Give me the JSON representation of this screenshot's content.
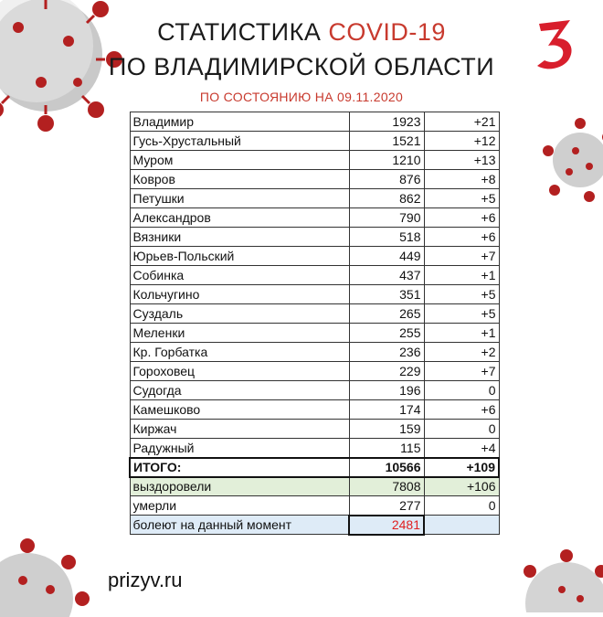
{
  "header": {
    "title_line1_black": "СТАТИСТИКА",
    "title_line1_red": "COVID-19",
    "title_line2": "ПО ВЛАДИМИРСКОЙ ОБЛАСТИ",
    "subtitle": "ПО СОСТОЯНИЮ НА 09.11.2020"
  },
  "table": {
    "rows": [
      {
        "name": "Владимир",
        "total": "1923",
        "delta": "+21"
      },
      {
        "name": "Гусь-Хрустальный",
        "total": "1521",
        "delta": "+12"
      },
      {
        "name": "Муром",
        "total": "1210",
        "delta": "+13"
      },
      {
        "name": "Ковров",
        "total": "876",
        "delta": "+8"
      },
      {
        "name": "Петушки",
        "total": "862",
        "delta": "+5"
      },
      {
        "name": "Александров",
        "total": "790",
        "delta": "+6"
      },
      {
        "name": "Вязники",
        "total": "518",
        "delta": "+6"
      },
      {
        "name": "Юрьев-Польский",
        "total": "449",
        "delta": "+7"
      },
      {
        "name": "Собинка",
        "total": "437",
        "delta": "+1"
      },
      {
        "name": "Кольчугино",
        "total": "351",
        "delta": "+5"
      },
      {
        "name": "Суздаль",
        "total": "265",
        "delta": "+5"
      },
      {
        "name": "Меленки",
        "total": "255",
        "delta": "+1"
      },
      {
        "name": "Кр. Горбатка",
        "total": "236",
        "delta": "+2"
      },
      {
        "name": "Гороховец",
        "total": "229",
        "delta": "+7"
      },
      {
        "name": "Судогда",
        "total": "196",
        "delta": "0"
      },
      {
        "name": "Камешково",
        "total": "174",
        "delta": "+6"
      },
      {
        "name": "Киржач",
        "total": "159",
        "delta": "0"
      },
      {
        "name": "Радужный",
        "total": "115",
        "delta": "+4"
      }
    ],
    "total": {
      "name": "ИТОГО:",
      "total": "10566",
      "delta": "+109"
    },
    "recovered": {
      "name": "выздоровели",
      "total": "7808",
      "delta": "+106"
    },
    "deaths": {
      "name": "умерли",
      "total": "277",
      "delta": "0"
    },
    "sick": {
      "name": "болеют на данный момент",
      "total": "2481",
      "delta": ""
    }
  },
  "footer": {
    "site": "prizyv.ru"
  },
  "colors": {
    "accent_red": "#c83a2e",
    "recovered_bg": "#e2efd9",
    "sick_bg": "#deebf7",
    "sick_value": "#e02020"
  },
  "icons": [
    "coronavirus-decoration",
    "channel-3-logo"
  ]
}
